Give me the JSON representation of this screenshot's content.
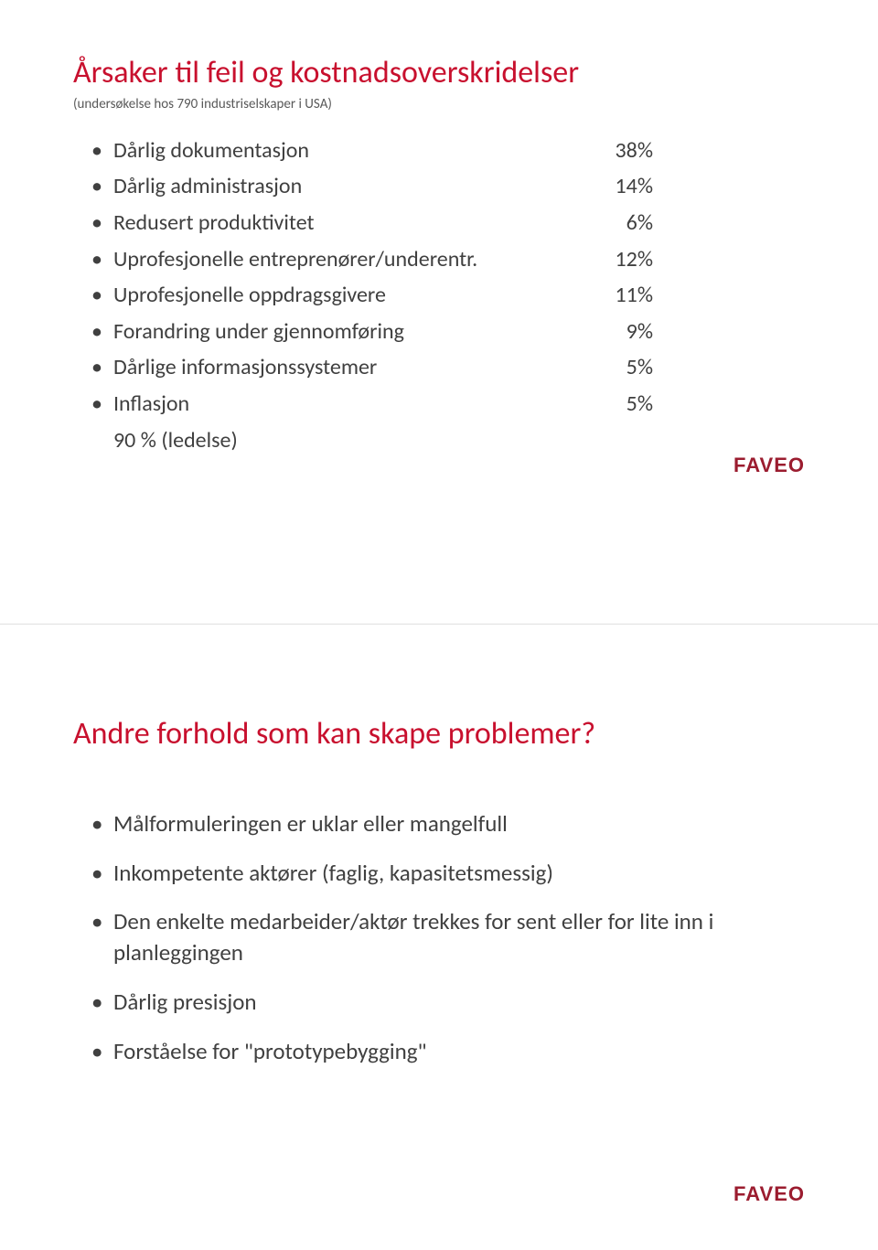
{
  "slide1": {
    "title": "Årsaker til feil og kostnadsoverskridelser",
    "subtitle": "(undersøkelse hos 790 industriselskaper i USA)",
    "items": [
      {
        "label": "Dårlig dokumentasjon",
        "value": "38%"
      },
      {
        "label": "Dårlig administrasjon",
        "value": "14%"
      },
      {
        "label": "Redusert produktivitet",
        "value": "6%"
      },
      {
        "label": "Uprofesjonelle entreprenører/underentr.",
        "value": "12%"
      },
      {
        "label": "Uprofesjonelle oppdragsgivere",
        "value": "11%"
      },
      {
        "label": "Forandring under gjennomføring",
        "value": "9%"
      },
      {
        "label": "Dårlige informasjonssystemer",
        "value": "5%"
      },
      {
        "label": "Inflasjon",
        "value": "5%"
      }
    ],
    "footer": "90 % (ledelse)"
  },
  "slide2": {
    "title": "Andre forhold som kan skape problemer?",
    "items": [
      "Målformuleringen er uklar eller mangelfull",
      "Inkompetente aktører (faglig, kapasitetsmessig)",
      "Den enkelte medarbeider/aktør trekkes for sent eller for lite inn i planleggingen",
      "Dårlig presisjon",
      "Forståelse for \"prototypebygging\""
    ]
  },
  "logo": "FAVEO",
  "colors": {
    "title": "#c8102e",
    "body": "#404040",
    "subtitle": "#595959",
    "logo": "#9b1c2f",
    "background": "#ffffff"
  },
  "typography": {
    "title_fontsize": 34,
    "body_fontsize": 24,
    "subtitle_fontsize": 15,
    "logo_fontsize": 22
  }
}
